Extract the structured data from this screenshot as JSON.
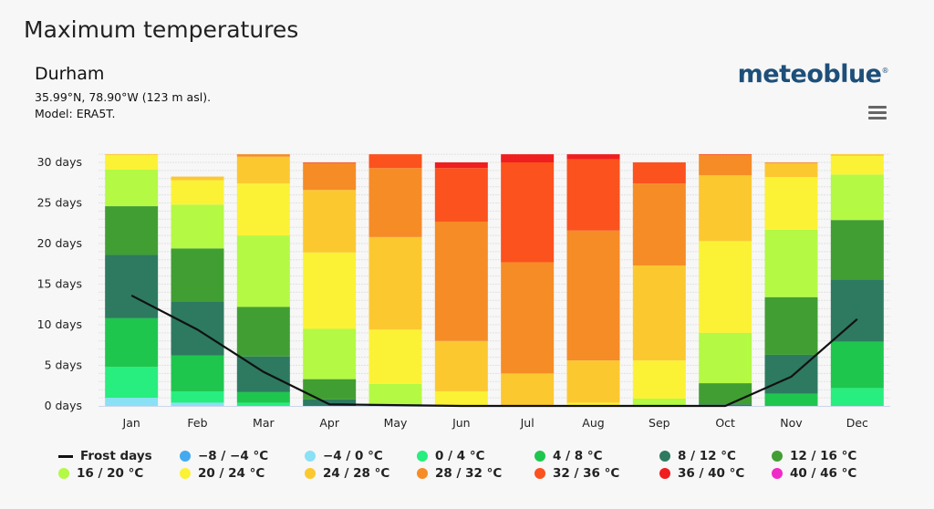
{
  "header": {
    "title": "Maximum temperatures",
    "location": "Durham",
    "coords": "35.99°N, 78.90°W (123 m asl).",
    "model": "Model: ERA5T.",
    "logo": "meteoblue",
    "menu_icon": "hamburger-menu-icon"
  },
  "chart_data": {
    "type": "bar",
    "stacked": true,
    "title": "",
    "xlabel": "",
    "ylabel": "",
    "ylim": [
      0,
      31
    ],
    "yticks": [
      0,
      5,
      10,
      15,
      20,
      25,
      30
    ],
    "ytick_labels": [
      "0 days",
      "5 days",
      "10 days",
      "15 days",
      "20 days",
      "25 days",
      "30 days"
    ],
    "grid": true,
    "legend_position": "bottom",
    "categories": [
      "Jan",
      "Feb",
      "Mar",
      "Apr",
      "May",
      "Jun",
      "Jul",
      "Aug",
      "Sep",
      "Oct",
      "Nov",
      "Dec"
    ],
    "series": [
      {
        "name": "−8 / −4 °C",
        "color": "#44aaf0",
        "values": [
          0,
          0,
          0,
          0,
          0,
          0,
          0,
          0,
          0,
          0,
          0,
          0
        ]
      },
      {
        "name": "−4 / 0 °C",
        "color": "#8ae0f5",
        "values": [
          1.0,
          0.4,
          0,
          0,
          0,
          0,
          0,
          0,
          0,
          0,
          0,
          0
        ]
      },
      {
        "name": "0 / 4 °C",
        "color": "#27ee7f",
        "values": [
          3.8,
          1.4,
          0.4,
          0,
          0,
          0,
          0,
          0,
          0,
          0,
          0,
          2.2
        ]
      },
      {
        "name": "4 / 8 °C",
        "color": "#1ec64e",
        "values": [
          6.0,
          4.4,
          1.3,
          0,
          0,
          0,
          0,
          0,
          0,
          0,
          1.5,
          5.7
        ]
      },
      {
        "name": "8 / 12 °C",
        "color": "#2d7a60",
        "values": [
          7.8,
          6.7,
          4.4,
          0.8,
          0,
          0,
          0,
          0,
          0,
          0.2,
          4.8,
          7.7
        ]
      },
      {
        "name": "12 / 16 °C",
        "color": "#419e33",
        "values": [
          6.0,
          6.5,
          6.1,
          2.5,
          0.2,
          0,
          0,
          0,
          0,
          2.6,
          7.1,
          7.3
        ]
      },
      {
        "name": "16 / 20 °C",
        "color": "#b4f944",
        "values": [
          4.5,
          5.4,
          8.8,
          6.2,
          2.5,
          0,
          0,
          0,
          0.9,
          6.2,
          8.3,
          5.6
        ]
      },
      {
        "name": "20 / 24 °C",
        "color": "#fbf236",
        "values": [
          1.8,
          3.0,
          6.4,
          9.4,
          6.7,
          1.8,
          0,
          0.4,
          4.7,
          11.3,
          6.5,
          2.3
        ]
      },
      {
        "name": "24 / 28 °C",
        "color": "#fcc830",
        "values": [
          0.1,
          0.45,
          3.3,
          7.7,
          11.4,
          6.2,
          4.0,
          5.2,
          11.7,
          8.1,
          1.7,
          0.2
        ]
      },
      {
        "name": "28 / 32 °C",
        "color": "#f68c26",
        "values": [
          0,
          0,
          0.3,
          3.3,
          8.5,
          14.7,
          13.7,
          16.0,
          10.1,
          2.5,
          0.1,
          0
        ]
      },
      {
        "name": "32 / 36 °C",
        "color": "#fb521e",
        "values": [
          0,
          0,
          0,
          0.1,
          1.7,
          6.6,
          12.3,
          8.8,
          2.6,
          0.1,
          0,
          0
        ]
      },
      {
        "name": "36 / 40 °C",
        "color": "#f01e1e",
        "values": [
          0,
          0,
          0,
          0,
          0,
          0.7,
          1.0,
          0.6,
          0,
          0,
          0,
          0
        ]
      },
      {
        "name": "40 / 46 °C",
        "color": "#f02bc8",
        "values": [
          0,
          0,
          0,
          0,
          0,
          0,
          0,
          0,
          0,
          0,
          0,
          0
        ]
      }
    ],
    "line_series": {
      "name": "Frost days",
      "color": "#111111",
      "values": [
        13.6,
        9.4,
        4.2,
        0.2,
        0.1,
        0,
        0,
        0,
        0,
        0,
        3.6,
        10.7
      ]
    }
  }
}
